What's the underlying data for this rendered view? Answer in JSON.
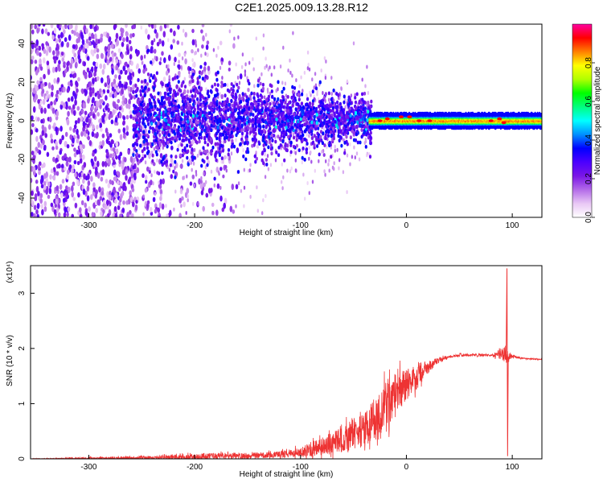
{
  "title": "C2E1.2025.009.13.28.R12",
  "chart_data": [
    {
      "type": "heatmap",
      "xlabel": "Height of straight line (km)",
      "ylabel": "Frequency (Hz)",
      "xlim": [
        -355,
        128
      ],
      "ylim": [
        -50,
        50
      ],
      "xticks": [
        -300,
        -200,
        -100,
        0,
        100
      ],
      "yticks": [
        -40,
        -20,
        0,
        20,
        40
      ],
      "colorbar": {
        "label": "Normalized spectral amplitude",
        "range": [
          0,
          1
        ],
        "ticks": [
          0.0,
          0.2,
          0.4,
          0.6,
          0.8
        ],
        "tick_labels": [
          "0.0",
          "0.2",
          "0.4",
          "0.6",
          "0.8"
        ],
        "colors": [
          "#ffffff",
          "#e9c8f5",
          "#b36be8",
          "#7a16e6",
          "#4b00ff",
          "#0000ff",
          "#0090ff",
          "#00ffff",
          "#00ff80",
          "#00ff00",
          "#b0ff00",
          "#ffff00",
          "#ff8000",
          "#ff0000",
          "#ff00a0"
        ]
      },
      "features": [
        {
          "region": "x < -255",
          "description": "scattered speckle",
          "frequency_range": [
            -50,
            50
          ],
          "amplitude": [
            0.05,
            0.25
          ]
        },
        {
          "region": "-255 < x < -35",
          "description": "broadened band",
          "frequency_range": [
            -20,
            20
          ],
          "amplitude": [
            0.15,
            0.45
          ]
        },
        {
          "region": "x > -35",
          "description": "narrow tone",
          "frequency_range": [
            -3,
            3
          ],
          "amplitude": [
            0.5,
            0.95
          ]
        }
      ]
    },
    {
      "type": "line",
      "xlabel": "Height of straight line (km)",
      "ylabel": "SNR (10 * v/v)",
      "yscale_label": "(x10⁴)",
      "xlim": [
        -355,
        128
      ],
      "ylim": [
        0,
        3.5
      ],
      "xticks": [
        -300,
        -200,
        -100,
        0,
        100
      ],
      "yticks": [
        0,
        1,
        2,
        3
      ],
      "series": [
        {
          "color": "#ee3333",
          "x": [
            -355,
            -300,
            -250,
            -200,
            -180,
            -150,
            -120,
            -100,
            -80,
            -60,
            -40,
            -30,
            -20,
            -10,
            0,
            10,
            20,
            30,
            40,
            50,
            60,
            80,
            90,
            95,
            100,
            110,
            128
          ],
          "y": [
            0.0,
            0.01,
            0.02,
            0.04,
            0.05,
            0.06,
            0.08,
            0.12,
            0.22,
            0.35,
            0.55,
            0.7,
            0.95,
            1.2,
            1.35,
            1.5,
            1.65,
            1.78,
            1.85,
            1.88,
            1.88,
            1.88,
            1.9,
            1.85,
            1.85,
            1.82,
            1.8
          ],
          "noise_amplitude": [
            0.005,
            0.02,
            0.03,
            0.05,
            0.06,
            0.05,
            0.06,
            0.09,
            0.17,
            0.24,
            0.3,
            0.38,
            0.42,
            0.38,
            0.3,
            0.25,
            0.12,
            0.05,
            0.03,
            0.02,
            0.02,
            0.02,
            0.1,
            0.15,
            0.03,
            0.01,
            0.01
          ]
        }
      ],
      "spike": {
        "x": 95,
        "max": 3.45,
        "min": 0.05
      }
    }
  ]
}
